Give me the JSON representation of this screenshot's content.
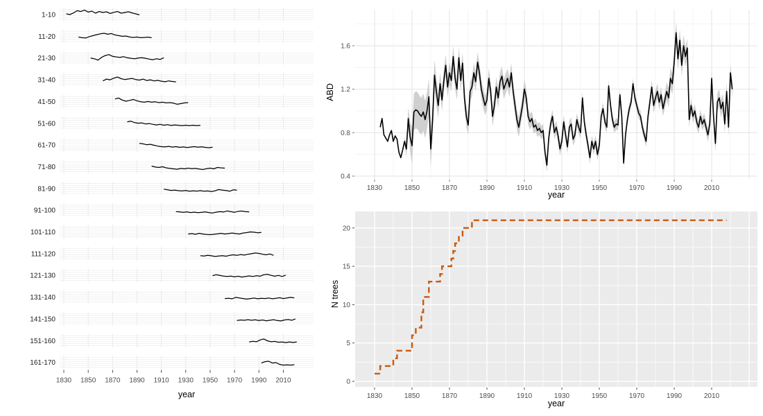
{
  "colors": {
    "line_black": "#000000",
    "ribbon_gray": "#c4c4c4",
    "panel_gray": "#ebebeb",
    "grid_white": "#ffffff",
    "grid_light": "#ececec",
    "grid_major_light": "#e3e3e3",
    "grid_minor_light": "#f1f1f1",
    "tick_text": "#4d4d4d",
    "strip_text": "#1a1a1a",
    "step_orange": "#C65A11"
  },
  "labels": {
    "xlabel_left": "year",
    "xlabel_abd": "year",
    "xlabel_ntrees": "year",
    "ylabel_abd": "ABD",
    "ylabel_ntrees": "N trees"
  },
  "chart_data": [
    {
      "id": "age_facets",
      "type": "line",
      "xlabel": "year",
      "x_ticks": [
        1830,
        1850,
        1870,
        1890,
        1910,
        1930,
        1950,
        1970,
        1990,
        2010
      ],
      "x_range": [
        1826,
        2034
      ],
      "facet_step_years": 3,
      "facets": [
        {
          "label": "1-10",
          "start": 1832,
          "values": [
            0.55,
            0.5,
            0.62,
            0.78,
            0.72,
            0.82,
            0.68,
            0.75,
            0.6,
            0.72,
            0.65,
            0.7,
            0.58,
            0.66,
            0.72,
            0.6,
            0.65,
            0.7,
            0.62,
            0.55,
            0.48
          ]
        },
        {
          "label": "11-20",
          "start": 1842,
          "values": [
            0.45,
            0.4,
            0.38,
            0.48,
            0.55,
            0.62,
            0.68,
            0.72,
            0.65,
            0.7,
            0.6,
            0.55,
            0.5,
            0.52,
            0.45,
            0.42,
            0.45,
            0.4,
            0.42,
            0.44,
            0.4
          ]
        },
        {
          "label": "21-30",
          "start": 1852,
          "values": [
            0.5,
            0.45,
            0.35,
            0.55,
            0.68,
            0.75,
            0.62,
            0.58,
            0.55,
            0.6,
            0.52,
            0.48,
            0.45,
            0.5,
            0.52,
            0.48,
            0.42,
            0.38,
            0.45,
            0.4,
            0.52
          ]
        },
        {
          "label": "31-40",
          "start": 1862,
          "values": [
            0.42,
            0.55,
            0.5,
            0.62,
            0.7,
            0.58,
            0.52,
            0.56,
            0.6,
            0.52,
            0.48,
            0.55,
            0.45,
            0.5,
            0.42,
            0.46,
            0.4,
            0.36,
            0.42,
            0.38,
            0.35
          ]
        },
        {
          "label": "41-50",
          "start": 1872,
          "values": [
            0.68,
            0.75,
            0.6,
            0.52,
            0.58,
            0.65,
            0.55,
            0.48,
            0.45,
            0.5,
            0.45,
            0.48,
            0.42,
            0.45,
            0.4,
            0.42,
            0.38,
            0.3,
            0.35,
            0.4,
            0.42
          ]
        },
        {
          "label": "51-60",
          "start": 1882,
          "values": [
            0.6,
            0.65,
            0.55,
            0.5,
            0.52,
            0.45,
            0.48,
            0.42,
            0.38,
            0.42,
            0.36,
            0.4,
            0.34,
            0.38,
            0.35,
            0.32,
            0.36,
            0.33,
            0.36,
            0.32,
            0.35
          ]
        },
        {
          "label": "61-70",
          "start": 1892,
          "values": [
            0.62,
            0.58,
            0.52,
            0.55,
            0.48,
            0.42,
            0.38,
            0.36,
            0.4,
            0.35,
            0.38,
            0.33,
            0.36,
            0.32,
            0.35,
            0.38,
            0.34,
            0.37,
            0.33,
            0.3,
            0.34
          ]
        },
        {
          "label": "71-80",
          "start": 1902,
          "values": [
            0.55,
            0.48,
            0.45,
            0.5,
            0.42,
            0.38,
            0.35,
            0.32,
            0.38,
            0.35,
            0.4,
            0.36,
            0.38,
            0.34,
            0.3,
            0.36,
            0.4,
            0.35,
            0.45,
            0.42,
            0.4
          ]
        },
        {
          "label": "81-90",
          "start": 1912,
          "values": [
            0.45,
            0.4,
            0.36,
            0.38,
            0.34,
            0.32,
            0.35,
            0.3,
            0.33,
            0.31,
            0.34,
            0.3,
            0.32,
            0.28,
            0.33,
            0.42,
            0.38,
            0.35,
            0.3,
            0.4,
            0.38
          ]
        },
        {
          "label": "91-100",
          "start": 1922,
          "values": [
            0.4,
            0.38,
            0.35,
            0.38,
            0.33,
            0.36,
            0.32,
            0.35,
            0.38,
            0.33,
            0.3,
            0.36,
            0.4,
            0.37,
            0.45,
            0.4,
            0.35,
            0.42,
            0.44,
            0.4,
            0.38
          ]
        },
        {
          "label": "101-110",
          "start": 1932,
          "values": [
            0.35,
            0.38,
            0.33,
            0.4,
            0.35,
            0.32,
            0.3,
            0.33,
            0.36,
            0.4,
            0.35,
            0.38,
            0.42,
            0.38,
            0.35,
            0.42,
            0.45,
            0.5,
            0.48,
            0.44,
            0.46
          ]
        },
        {
          "label": "111-120",
          "start": 1942,
          "values": [
            0.36,
            0.33,
            0.38,
            0.35,
            0.3,
            0.33,
            0.36,
            0.32,
            0.38,
            0.42,
            0.38,
            0.44,
            0.4,
            0.46,
            0.5,
            0.55,
            0.52,
            0.46,
            0.42,
            0.48,
            0.38
          ]
        },
        {
          "label": "121-130",
          "start": 1952,
          "values": [
            0.48,
            0.55,
            0.5,
            0.45,
            0.42,
            0.45,
            0.4,
            0.44,
            0.38,
            0.42,
            0.46,
            0.42,
            0.48,
            0.44,
            0.55,
            0.58,
            0.5,
            0.44,
            0.5,
            0.42,
            0.52
          ]
        },
        {
          "label": "131-140",
          "start": 1962,
          "values": [
            0.4,
            0.42,
            0.38,
            0.48,
            0.44,
            0.4,
            0.36,
            0.4,
            0.43,
            0.38,
            0.42,
            0.4,
            0.44,
            0.38,
            0.42,
            0.46,
            0.4,
            0.44,
            0.48,
            0.45
          ]
        },
        {
          "label": "141-150",
          "start": 1972,
          "values": [
            0.38,
            0.42,
            0.4,
            0.44,
            0.4,
            0.43,
            0.38,
            0.42,
            0.36,
            0.4,
            0.44,
            0.38,
            0.35,
            0.42,
            0.45,
            0.4,
            0.5
          ]
        },
        {
          "label": "151-160",
          "start": 1982,
          "values": [
            0.4,
            0.45,
            0.42,
            0.55,
            0.62,
            0.48,
            0.42,
            0.44,
            0.38,
            0.4,
            0.36,
            0.4,
            0.37,
            0.4
          ]
        },
        {
          "label": "161-170",
          "start": 1992,
          "values": [
            0.45,
            0.55,
            0.58,
            0.45,
            0.48,
            0.35,
            0.3,
            0.32,
            0.3,
            0.33
          ]
        }
      ]
    },
    {
      "id": "abd",
      "type": "line",
      "ylabel": "ABD",
      "xlabel": "year",
      "x_ticks": [
        1830,
        1850,
        1870,
        1890,
        1910,
        1930,
        1950,
        1970,
        1990,
        2010
      ],
      "y_ticks": [
        0.4,
        0.8,
        1.2,
        1.6
      ],
      "y_minor": [
        0.6,
        1.0,
        1.4,
        1.8
      ],
      "ylim": [
        0.37,
        1.93
      ],
      "x_range": [
        1820,
        2034
      ],
      "start": 1833,
      "values": [
        0.85,
        0.93,
        0.78,
        0.75,
        0.72,
        0.78,
        0.82,
        0.72,
        0.77,
        0.74,
        0.62,
        0.57,
        0.64,
        0.72,
        0.65,
        0.93,
        0.76,
        0.68,
        0.99,
        1.01,
        1.0,
        0.97,
        0.95,
        0.99,
        0.92,
        1.0,
        1.13,
        0.65,
        0.92,
        1.33,
        1.18,
        1.05,
        1.25,
        1.1,
        1.28,
        1.42,
        1.22,
        1.35,
        1.28,
        1.5,
        1.3,
        1.2,
        1.49,
        1.28,
        1.44,
        1.12,
        0.95,
        0.87,
        1.18,
        1.22,
        1.35,
        1.27,
        1.45,
        1.35,
        1.2,
        1.12,
        1.05,
        1.1,
        1.3,
        1.18,
        0.95,
        1.05,
        1.22,
        1.12,
        1.27,
        1.32,
        1.2,
        1.25,
        1.3,
        1.22,
        1.35,
        1.18,
        1.05,
        0.92,
        0.85,
        0.95,
        1.05,
        1.2,
        1.12,
        0.95,
        0.9,
        0.93,
        0.85,
        0.87,
        0.82,
        0.84,
        0.8,
        0.82,
        0.62,
        0.5,
        0.75,
        0.88,
        0.95,
        0.8,
        0.85,
        0.77,
        0.65,
        0.72,
        0.9,
        0.78,
        0.67,
        0.85,
        0.88,
        0.74,
        0.78,
        0.92,
        0.85,
        0.8,
        1.12,
        0.9,
        0.78,
        0.68,
        0.57,
        0.72,
        0.65,
        0.72,
        0.6,
        0.68,
        0.95,
        1.02,
        0.9,
        0.85,
        1.23,
        1.05,
        0.92,
        0.85,
        0.88,
        0.87,
        1.15,
        0.95,
        0.52,
        0.78,
        0.92,
        1.02,
        1.08,
        1.25,
        1.12,
        1.05,
        0.98,
        0.95,
        0.85,
        0.78,
        0.72,
        0.95,
        1.08,
        1.22,
        1.05,
        1.12,
        1.18,
        1.08,
        1.15,
        1.02,
        1.1,
        1.18,
        1.12,
        1.3,
        1.25,
        1.45,
        1.72,
        1.48,
        1.65,
        1.42,
        1.6,
        1.5,
        1.58,
        0.92,
        1.05,
        0.95,
        1.0,
        0.9,
        0.85,
        0.95,
        0.88,
        0.92,
        0.85,
        0.78,
        0.88,
        1.3,
        0.95,
        0.7,
        1.08,
        1.12,
        1.02,
        1.08,
        0.88,
        1.18,
        0.85,
        1.35,
        1.2
      ],
      "band_segments": [
        {
          "from": 1833,
          "to": 1847,
          "half": 0
        },
        {
          "from": 1848,
          "to": 1862,
          "half": 0.17
        },
        {
          "from": 1863,
          "to": 1878,
          "half": 0.1
        },
        {
          "from": 1879,
          "to": 1912,
          "half": 0.09
        },
        {
          "from": 1913,
          "to": 1940,
          "half": 0.06
        },
        {
          "from": 1941,
          "to": 1958,
          "half": 0.055
        },
        {
          "from": 1959,
          "to": 1976,
          "half": 0.05
        },
        {
          "from": 1977,
          "to": 1986,
          "half": 0.07
        },
        {
          "from": 1987,
          "to": 1997,
          "half": 0.1
        },
        {
          "from": 1998,
          "to": 2009,
          "half": 0.06
        },
        {
          "from": 2010,
          "to": 2021,
          "half": 0.08
        }
      ]
    },
    {
      "id": "ntrees",
      "type": "step",
      "ylabel": "N trees",
      "xlabel": "year",
      "x_ticks": [
        1830,
        1850,
        1870,
        1890,
        1910,
        1930,
        1950,
        1970,
        1990,
        2010
      ],
      "y_ticks": [
        0,
        5,
        10,
        15,
        20
      ],
      "y_minor": [
        2.5,
        7.5,
        12.5,
        17.5
      ],
      "ylim": [
        -0.6,
        22.2
      ],
      "x_range": [
        1820,
        2034
      ],
      "steps": [
        [
          1830,
          1
        ],
        [
          1833,
          2
        ],
        [
          1840,
          3
        ],
        [
          1842,
          4
        ],
        [
          1850,
          6
        ],
        [
          1852,
          7
        ],
        [
          1855,
          9
        ],
        [
          1856,
          11
        ],
        [
          1859,
          13
        ],
        [
          1865,
          14
        ],
        [
          1866,
          15
        ],
        [
          1871,
          16
        ],
        [
          1872,
          17
        ],
        [
          1873,
          18
        ],
        [
          1875,
          19
        ],
        [
          1877,
          20
        ],
        [
          1882,
          21
        ]
      ],
      "end_year": 2018,
      "dash": [
        8,
        5
      ]
    }
  ]
}
